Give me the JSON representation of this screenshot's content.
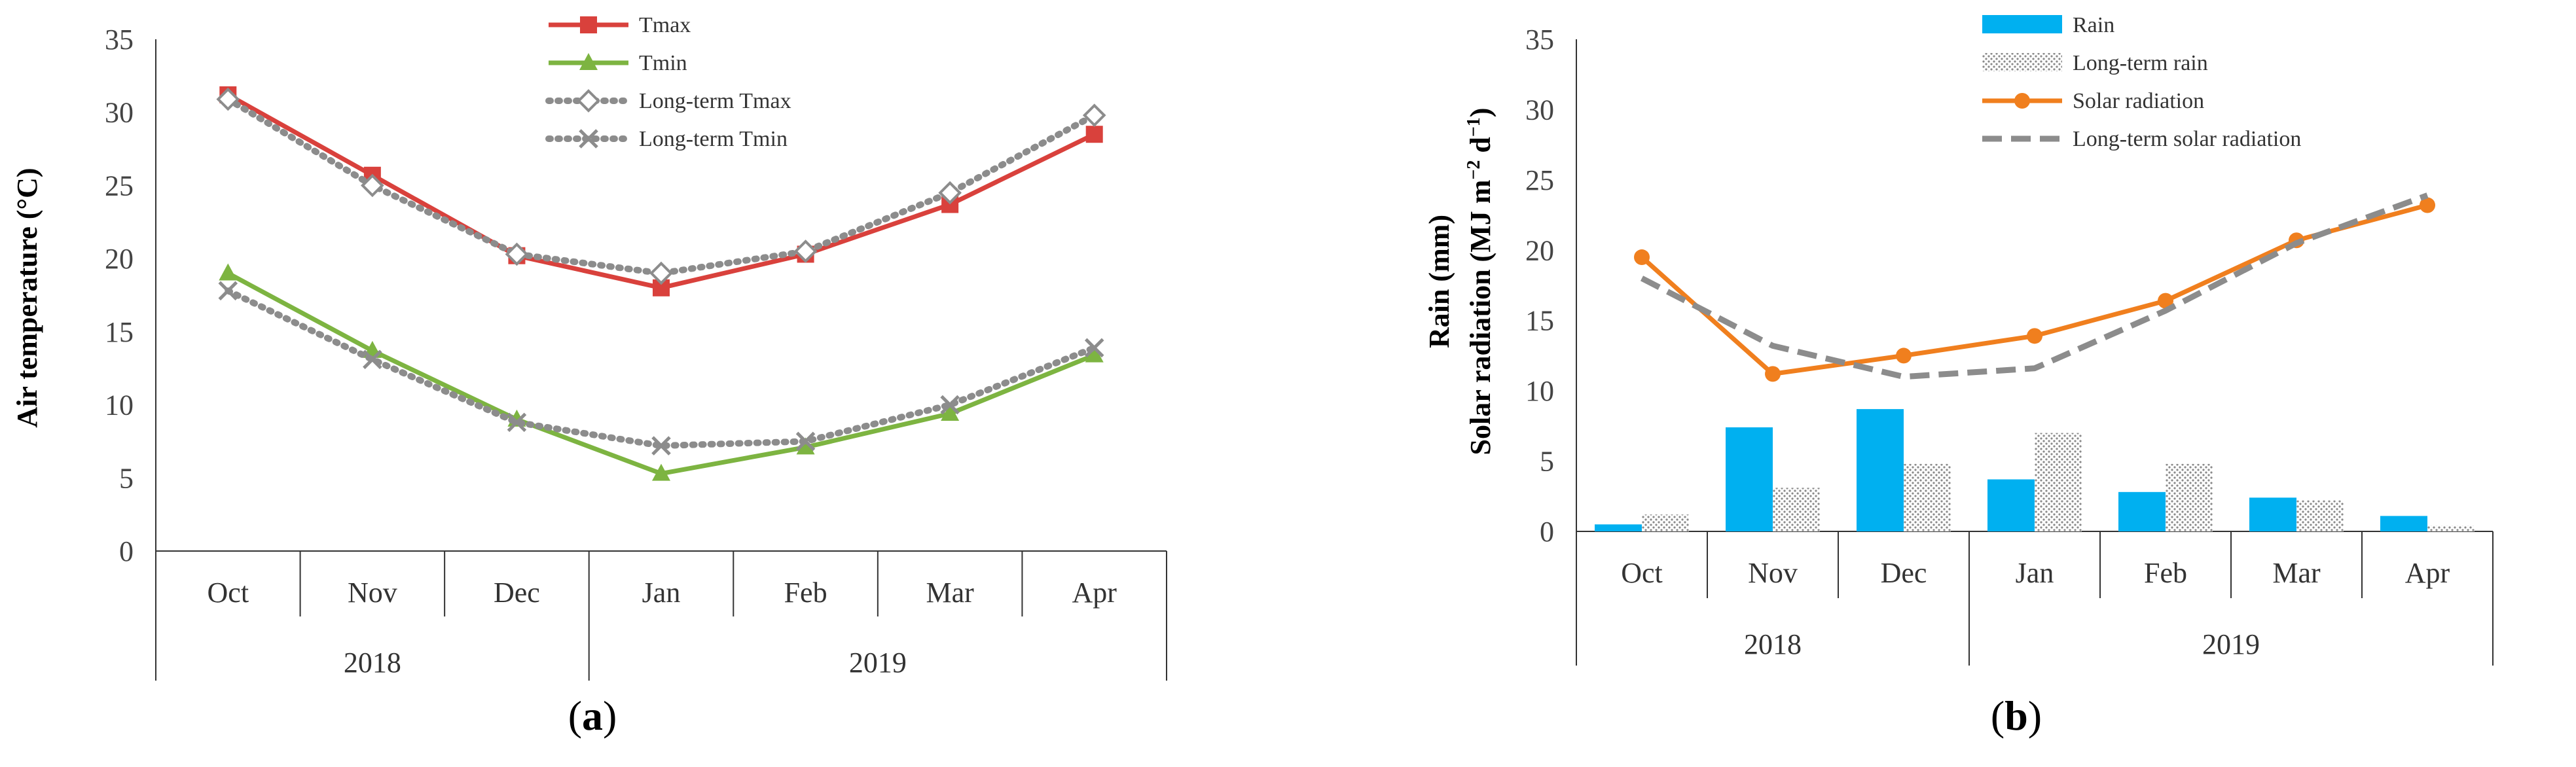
{
  "chart_data": [
    {
      "type": "line",
      "panel_label": "a",
      "ylabel": "Air temperature (°C)",
      "ylim": [
        0,
        35
      ],
      "yticks": [
        0,
        5,
        10,
        15,
        20,
        25,
        30,
        35
      ],
      "categories": [
        "Oct",
        "Nov",
        "Dec",
        "Jan",
        "Feb",
        "Mar",
        "Apr"
      ],
      "year_groups": [
        {
          "label": "2018",
          "span": 3
        },
        {
          "label": "2019",
          "span": 4
        }
      ],
      "series": [
        {
          "name": "Tmax",
          "style": "solid",
          "marker": "square",
          "color": "#d9413c",
          "values": [
            31.2,
            25.7,
            20.2,
            18.0,
            20.3,
            23.7,
            28.5
          ]
        },
        {
          "name": "Tmin",
          "style": "solid",
          "marker": "triangle",
          "color": "#7db441",
          "values": [
            19.0,
            13.7,
            9.0,
            5.3,
            7.1,
            9.4,
            13.4
          ]
        },
        {
          "name": "Long-term Tmax",
          "style": "dotted",
          "marker": "diamond",
          "color": "#8c8c8c",
          "values": [
            30.9,
            25.0,
            20.3,
            19.0,
            20.5,
            24.5,
            29.8
          ]
        },
        {
          "name": "Long-term Tmin",
          "style": "dotted",
          "marker": "x",
          "color": "#8c8c8c",
          "values": [
            17.8,
            13.1,
            8.8,
            7.2,
            7.5,
            10.0,
            13.9
          ]
        }
      ]
    },
    {
      "type": "bar+line",
      "panel_label": "b",
      "ylabel_line1": "Rain (mm)",
      "ylabel_line2": "Solar radiation (MJ m",
      "ylabel_sup1": "−2",
      "ylabel_mid": " d",
      "ylabel_sup2": "−1",
      "ylabel_end": ")",
      "ylim": [
        0,
        35
      ],
      "yticks": [
        0,
        5,
        10,
        15,
        20,
        25,
        30,
        35
      ],
      "categories": [
        "Oct",
        "Nov",
        "Dec",
        "Jan",
        "Feb",
        "Mar",
        "Apr"
      ],
      "year_groups": [
        {
          "label": "2018",
          "span": 3
        },
        {
          "label": "2019",
          "span": 4
        }
      ],
      "bar_series": [
        {
          "name": "Rain",
          "color": "#00b0f0",
          "values": [
            0.5,
            7.4,
            8.7,
            3.7,
            2.8,
            2.4,
            1.1
          ]
        },
        {
          "name": "Long-term rain",
          "color": "#bfbfbf",
          "pattern": "dots",
          "values": [
            1.2,
            3.1,
            4.8,
            7.0,
            4.8,
            2.2,
            0.4
          ]
        }
      ],
      "line_series": [
        {
          "name": "Solar radiation",
          "style": "solid",
          "marker": "circle",
          "color": "#f07f1e",
          "values": [
            19.5,
            11.2,
            12.5,
            13.9,
            16.4,
            20.7,
            23.2
          ]
        },
        {
          "name": "Long-term solar radiation",
          "style": "dashed",
          "marker": "none",
          "color": "#8c8c8c",
          "values": [
            18.0,
            13.2,
            11.0,
            11.6,
            15.7,
            20.5,
            23.9
          ]
        }
      ]
    }
  ]
}
